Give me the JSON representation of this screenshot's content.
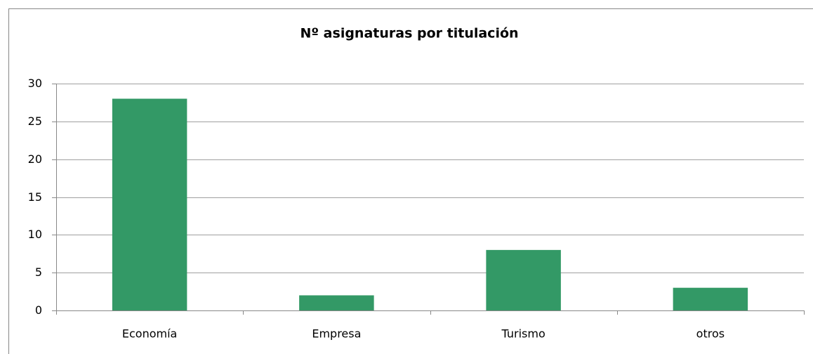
{
  "chart_data": {
    "type": "bar",
    "title": "Nº asignaturas por titulación",
    "categories": [
      "Economía",
      "Empresa",
      "Turismo",
      "otros"
    ],
    "values": [
      28,
      2,
      8,
      3
    ],
    "color": "#339966",
    "ylim": [
      0,
      30
    ],
    "yticks": [
      0,
      5,
      10,
      15,
      20,
      25,
      30
    ],
    "grid": true
  }
}
